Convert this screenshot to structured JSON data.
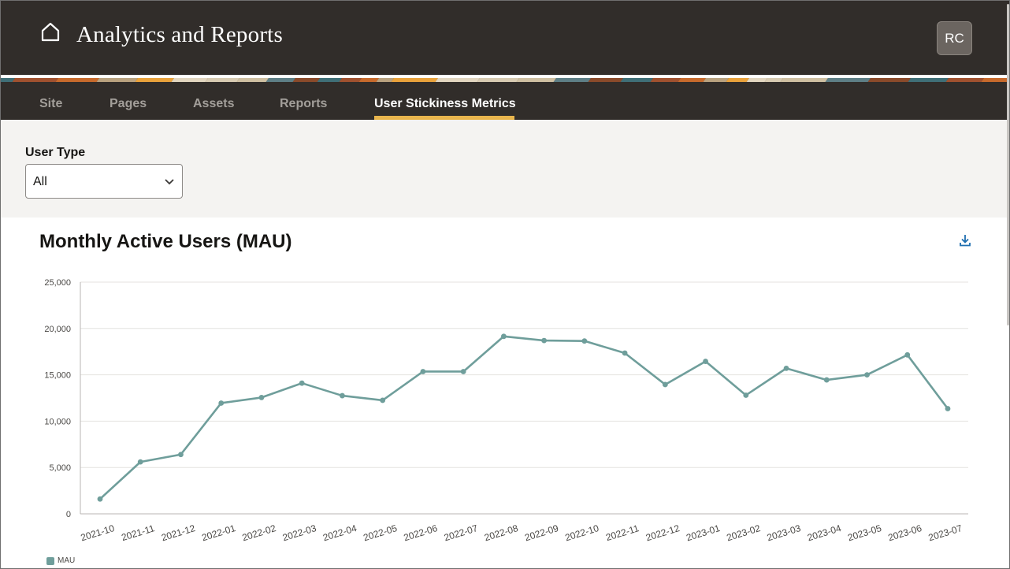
{
  "header": {
    "title": "Analytics and Reports",
    "avatar_initials": "RC",
    "home_icon": "home-icon"
  },
  "tabs": [
    {
      "label": "Site",
      "active": false
    },
    {
      "label": "Pages",
      "active": false
    },
    {
      "label": "Assets",
      "active": false
    },
    {
      "label": "Reports",
      "active": false
    },
    {
      "label": "User Stickiness Metrics",
      "active": true
    }
  ],
  "filter": {
    "label": "User Type",
    "selected": "All"
  },
  "chart_section": {
    "download_icon": "download-icon"
  },
  "colors": {
    "header_bg": "#312d2a",
    "tab_active_underline": "#e8b54d",
    "series": "#6f9e9b"
  },
  "chart_data": {
    "type": "line",
    "title": "Monthly Active Users (MAU)",
    "categories": [
      "2021-10",
      "2021-11",
      "2021-12",
      "2022-01",
      "2022-02",
      "2022-03",
      "2022-04",
      "2022-05",
      "2022-06",
      "2022-07",
      "2022-08",
      "2022-09",
      "2022-10",
      "2022-11",
      "2022-12",
      "2023-01",
      "2023-02",
      "2023-03",
      "2023-04",
      "2023-05",
      "2023-06",
      "2023-07"
    ],
    "series": [
      {
        "name": "MAU",
        "values": [
          1600,
          5600,
          6400,
          11950,
          12550,
          14100,
          12750,
          12250,
          15350,
          15350,
          19150,
          18700,
          18650,
          17350,
          13950,
          16450,
          12800,
          15700,
          14450,
          15000,
          17150,
          11350
        ]
      }
    ],
    "ylim": [
      0,
      25000
    ],
    "yticks": [
      "0",
      "5,000",
      "10,000",
      "15,000",
      "20,000",
      "25,000"
    ],
    "grid": true,
    "legend": "bottom-left"
  }
}
